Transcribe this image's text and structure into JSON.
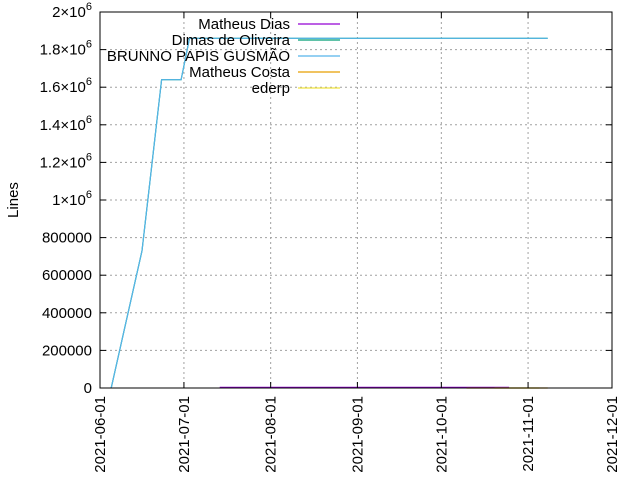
{
  "chart_data": {
    "type": "line",
    "title": "",
    "xlabel": "",
    "ylabel": "Lines",
    "x_axis_type": "date",
    "xlim": [
      "2021-06-01",
      "2021-12-01"
    ],
    "ylim": [
      0,
      2000000
    ],
    "grid": true,
    "legend_position": "top-right",
    "y_ticks": [
      {
        "value": 0,
        "base": "0",
        "exp": ""
      },
      {
        "value": 200000,
        "base": "200000",
        "exp": ""
      },
      {
        "value": 400000,
        "base": "400000",
        "exp": ""
      },
      {
        "value": 600000,
        "base": "600000",
        "exp": ""
      },
      {
        "value": 800000,
        "base": "800000",
        "exp": ""
      },
      {
        "value": 1000000,
        "base": "1×10",
        "exp": "6"
      },
      {
        "value": 1200000,
        "base": "1.2×10",
        "exp": "6"
      },
      {
        "value": 1400000,
        "base": "1.4×10",
        "exp": "6"
      },
      {
        "value": 1600000,
        "base": "1.6×10",
        "exp": "6"
      },
      {
        "value": 1800000,
        "base": "1.8×10",
        "exp": "6"
      },
      {
        "value": 2000000,
        "base": "2×10",
        "exp": "6"
      }
    ],
    "x_ticks": [
      "2021-06-01",
      "2021-07-01",
      "2021-08-01",
      "2021-09-01",
      "2021-10-01",
      "2021-11-01",
      "2021-12-01"
    ],
    "series": [
      {
        "name": "Matheus Dias",
        "color": "#9400d3",
        "points": [
          [
            "2021-07-14",
            0
          ],
          [
            "2021-07-14",
            3000
          ],
          [
            "2021-10-25",
            3000
          ],
          [
            "2021-10-25",
            0
          ]
        ]
      },
      {
        "name": "Dimas de Oliveira",
        "color": "#009e73",
        "points": [
          [
            "2021-06-05",
            0
          ],
          [
            "2021-06-16",
            730000
          ],
          [
            "2021-06-23",
            1640000
          ],
          [
            "2021-06-30",
            1640000
          ],
          [
            "2021-07-03",
            1860000
          ],
          [
            "2021-11-08",
            1860000
          ]
        ]
      },
      {
        "name": "BRUNNO PAPIS GUSMÃO",
        "color": "#56b4e9",
        "points": [
          [
            "2021-06-05",
            0
          ],
          [
            "2021-06-16",
            730000
          ],
          [
            "2021-06-23",
            1640000
          ],
          [
            "2021-06-30",
            1640000
          ],
          [
            "2021-07-03",
            1860000
          ],
          [
            "2021-11-08",
            1860000
          ]
        ]
      },
      {
        "name": "Matheus Costa",
        "color": "#e69f00",
        "points": [
          [
            "2021-10-10",
            0
          ],
          [
            "2021-11-08",
            0
          ]
        ]
      },
      {
        "name": "ederp",
        "color": "#f0e442",
        "points": [
          [
            "2021-10-20",
            0
          ],
          [
            "2021-11-05",
            0
          ]
        ]
      }
    ]
  }
}
